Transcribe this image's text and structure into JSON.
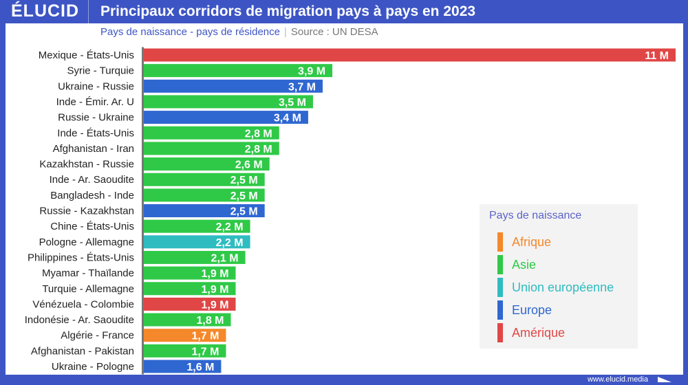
{
  "header": {
    "logo": "ÉLUCID",
    "title": "Principaux corridors de migration pays à pays en 2023",
    "subtitle": "Pays de naissance - pays de résidence",
    "separator": "|",
    "source": "Source : UN DESA"
  },
  "footer": {
    "url": "www.elucid.media"
  },
  "colors": {
    "Afrique": "#f5882a",
    "Asie": "#2fc947",
    "Union européenne": "#2fbcc0",
    "Europe": "#2f67d1",
    "Amérique": "#e04646"
  },
  "legend": {
    "title": "Pays de naissance",
    "items": [
      "Afrique",
      "Asie",
      "Union européenne",
      "Europe",
      "Amérique"
    ]
  },
  "chart_data": {
    "type": "bar",
    "orientation": "horizontal",
    "unit": "M",
    "xlim": [
      0,
      11
    ],
    "grid": false,
    "categories": [
      "Mexique - États-Unis",
      "Syrie - Turquie",
      "Ukraine - Russie",
      "Inde - Émir. Ar. U",
      "Russie - Ukraine",
      "Inde - États-Unis",
      "Afghanistan - Iran",
      "Kazakhstan - Russie",
      "Inde - Ar. Saoudite",
      "Bangladesh - Inde",
      "Russie - Kazakhstan",
      "Chine - États-Unis",
      "Pologne - Allemagne",
      "Philippines - États-Unis",
      "Myamar - Thaïlande",
      "Turquie - Allemagne",
      "Vénézuela - Colombie",
      "Indonésie - Ar. Saoudite",
      "Algérie - France",
      "Afghanistan - Pakistan",
      "Ukraine - Pologne"
    ],
    "values": [
      11,
      3.9,
      3.7,
      3.5,
      3.4,
      2.8,
      2.8,
      2.6,
      2.5,
      2.5,
      2.5,
      2.2,
      2.2,
      2.1,
      1.9,
      1.9,
      1.9,
      1.8,
      1.7,
      1.7,
      1.6
    ],
    "labels": [
      "11 M",
      "3,9 M",
      "3,7 M",
      "3,5 M",
      "3,4 M",
      "2,8 M",
      "2,8 M",
      "2,6 M",
      "2,5 M",
      "2,5 M",
      "2,5 M",
      "2,2 M",
      "2,2 M",
      "2,1 M",
      "1,9 M",
      "1,9 M",
      "1,9 M",
      "1,8 M",
      "1,7 M",
      "1,7 M",
      "1,6 M"
    ],
    "groups": [
      "Amérique",
      "Asie",
      "Europe",
      "Asie",
      "Europe",
      "Asie",
      "Asie",
      "Asie",
      "Asie",
      "Asie",
      "Europe",
      "Asie",
      "Union européenne",
      "Asie",
      "Asie",
      "Asie",
      "Amérique",
      "Asie",
      "Afrique",
      "Asie",
      "Europe"
    ]
  }
}
